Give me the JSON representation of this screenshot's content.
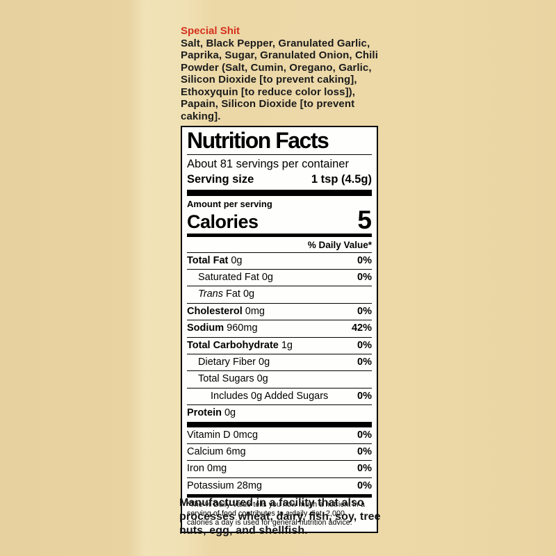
{
  "ingredients": {
    "title": "Special Shit",
    "text": "Salt, Black Pepper, Granulated Garlic, Paprika, Sugar, Granulated Onion, Chili Powder (Salt, Cumin, Oregano, Garlic, Silicon Dioxide [to prevent caking], Ethoxyquin [to reduce color loss]), Papain, Silicon Dioxide [to prevent caking]."
  },
  "nutrition": {
    "title": "Nutrition Facts",
    "servings": "About 81 servings per container",
    "serving_size_label": "Serving size",
    "serving_size_value": "1 tsp (4.5g)",
    "amount_per_serving": "Amount per serving",
    "calories_label": "Calories",
    "calories_value": "5",
    "daily_value_header": "% Daily Value*",
    "rows": [
      {
        "name": "Total Fat",
        "amount": "0g",
        "dv": "0%"
      },
      {
        "name": "Saturated Fat",
        "amount": "0g",
        "dv": "0%"
      },
      {
        "name": "Trans",
        "name2": "Fat",
        "amount": "0g",
        "dv": ""
      },
      {
        "name": "Cholesterol",
        "amount": "0mg",
        "dv": "0%"
      },
      {
        "name": "Sodium",
        "amount": "960mg",
        "dv": "42%"
      },
      {
        "name": "Total Carbohydrate",
        "amount": "1g",
        "dv": "0%"
      },
      {
        "name": "Dietary Fiber",
        "amount": "0g",
        "dv": "0%"
      },
      {
        "name": "Total Sugars",
        "amount": "0g",
        "dv": ""
      },
      {
        "name": "Includes 0g Added Sugars",
        "amount": "",
        "dv": "0%"
      },
      {
        "name": "Protein",
        "amount": "0g",
        "dv": ""
      }
    ],
    "vitamins": [
      {
        "name": "Vitamin D",
        "amount": "0mcg",
        "dv": "0%"
      },
      {
        "name": "Calcium",
        "amount": "6mg",
        "dv": "0%"
      },
      {
        "name": "Iron",
        "amount": "0mg",
        "dv": "0%"
      },
      {
        "name": "Potassium",
        "amount": "28mg",
        "dv": "0%"
      }
    ],
    "footnote": "*The % Daily Value tells you how much a nutrient in a serving of food contributes to a daily diet. 2,000 calories a day is used for general nutrition advice.",
    "colors": {
      "accent_red": "#d5311d",
      "background_tan": "#ecd8a7",
      "panel_white": "#fefefc"
    }
  },
  "allergen": {
    "text": "Manufactured in a facility that also processes wheat, dairy, fish, soy, tree nuts, egg, and shellfish."
  }
}
